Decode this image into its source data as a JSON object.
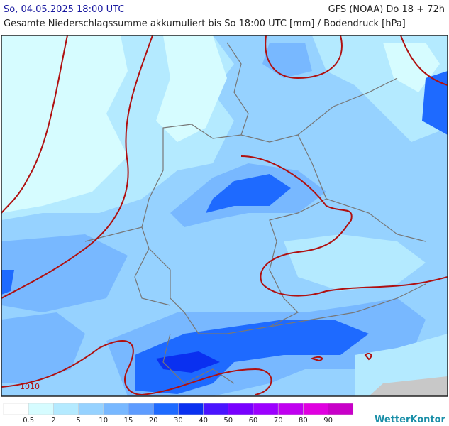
{
  "header": {
    "date": "So, 04.05.2025 18:00 UTC",
    "model": "GFS (NOAA) Do 18 + 72h",
    "subtitle": "Gesamte Niederschlagssumme akkumuliert bis So 18:00 UTC [mm] / Bodendruck [hPa]"
  },
  "map": {
    "isobar_label": "1010"
  },
  "legend": {
    "labels": [
      0.5,
      2,
      5,
      10,
      15,
      20,
      30,
      40,
      50,
      60,
      70,
      80,
      90
    ],
    "colors": [
      "#ffffff",
      "#d6fcff",
      "#b4eaff",
      "#96d2ff",
      "#78b8ff",
      "#5e9cff",
      "#1e6aff",
      "#0a30f0",
      "#4a14ff",
      "#7800ff",
      "#9c00ff",
      "#c000f0",
      "#e000e0",
      "#c800c8"
    ]
  },
  "brand": "WetterKontor"
}
